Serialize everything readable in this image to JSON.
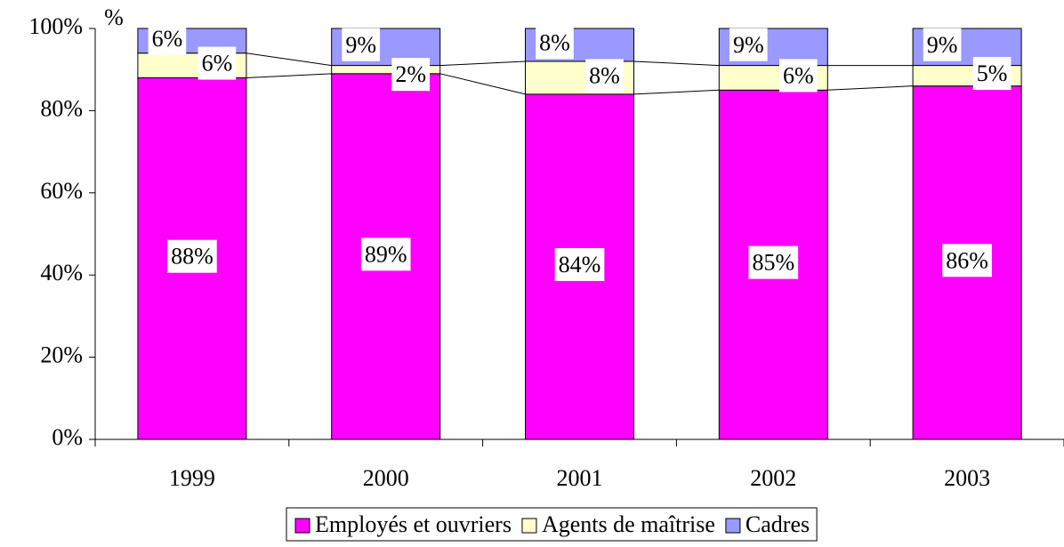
{
  "chart_data": {
    "type": "stacked_bar",
    "ylabel": "%",
    "categories": [
      "1999",
      "2000",
      "2001",
      "2002",
      "2003"
    ],
    "series": [
      {
        "name": "Employés et ouvriers",
        "color": "#ff00ff",
        "values": [
          88,
          89,
          84,
          85,
          86
        ],
        "value_labels": [
          "88%",
          "89%",
          "84%",
          "85%",
          "86%"
        ]
      },
      {
        "name": "Agents de maîtrise",
        "color": "#ffffcc",
        "values": [
          6,
          2,
          8,
          6,
          5
        ],
        "value_labels": [
          "6%",
          "2%",
          "8%",
          "6%",
          "5%"
        ]
      },
      {
        "name": "Cadres",
        "color": "#9999ff",
        "values": [
          6,
          9,
          8,
          9,
          9
        ],
        "value_labels": [
          "6%",
          "9%",
          "8%",
          "9%",
          "9%"
        ]
      }
    ],
    "ylim": [
      0,
      100
    ],
    "yticks": [
      {
        "value": 0,
        "label": "0%"
      },
      {
        "value": 20,
        "label": "20%"
      },
      {
        "value": 40,
        "label": "40%"
      },
      {
        "value": 60,
        "label": "60%"
      },
      {
        "value": 80,
        "label": "80%"
      },
      {
        "value": 100,
        "label": "100%"
      }
    ],
    "legend": "bottom"
  }
}
